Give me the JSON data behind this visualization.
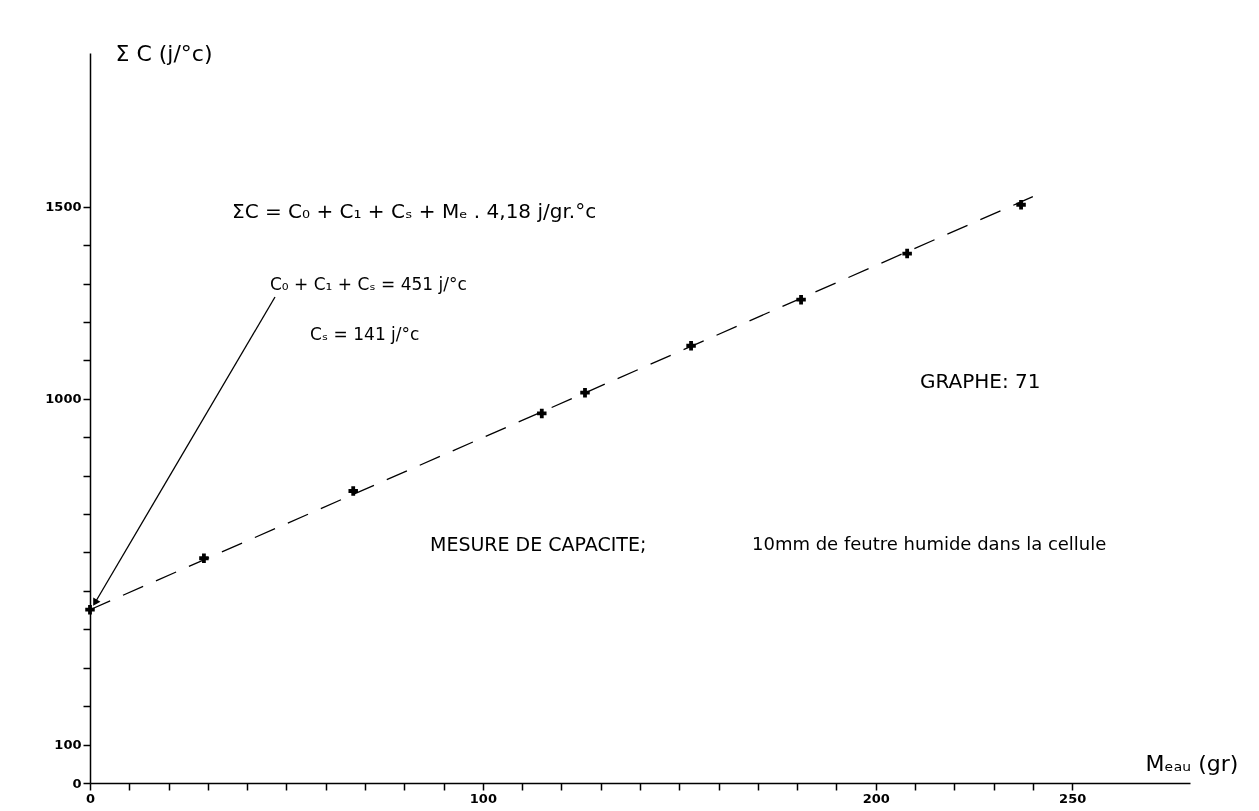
{
  "chart_data": {
    "type": "scatter",
    "xlabel": "Mₑₐᵤ (gr)",
    "ylabel": "Σ C (j/°c)",
    "x": [
      0,
      29,
      67,
      115,
      126,
      153,
      181,
      208,
      237
    ],
    "series": [
      {
        "color": "#000000",
        "values": [
          451,
          585,
          760,
          962,
          1016,
          1138,
          1258,
          1378,
          1505
        ]
      },
      {
        "type": "line",
        "marker": "none",
        "color": "#000000",
        "x": [
          0,
          240
        ],
        "values": [
          451,
          1526
        ]
      }
    ],
    "marker": "cross",
    "line_style": "dashed",
    "grid": false,
    "xlim": [
      0,
      280
    ],
    "ylim": [
      0,
      1900
    ],
    "xticks": [
      0,
      {
        "value": 10,
        "label": null
      },
      {
        "value": 20,
        "label": null
      },
      {
        "value": 30,
        "label": null
      },
      {
        "value": 40,
        "label": null
      },
      {
        "value": 50,
        "label": null
      },
      {
        "value": 60,
        "label": null
      },
      {
        "value": 70,
        "label": null
      },
      {
        "value": 80,
        "label": null
      },
      {
        "value": 90,
        "label": null
      },
      100,
      {
        "value": 110,
        "label": null
      },
      {
        "value": 120,
        "label": null
      },
      {
        "value": 130,
        "label": null
      },
      {
        "value": 140,
        "label": null
      },
      {
        "value": 150,
        "label": null
      },
      {
        "value": 160,
        "label": null
      },
      {
        "value": 170,
        "label": null
      },
      {
        "value": 180,
        "label": null
      },
      {
        "value": 190,
        "label": null
      },
      200,
      {
        "value": 210,
        "label": null
      },
      {
        "value": 220,
        "label": null
      },
      {
        "value": 230,
        "label": null
      },
      {
        "value": 240,
        "label": null
      },
      250
    ],
    "yticks": [
      0,
      100,
      {
        "value": 200,
        "label": null
      },
      {
        "value": 300,
        "label": null
      },
      {
        "value": 400,
        "label": null
      },
      {
        "value": 500,
        "label": null
      },
      {
        "value": 600,
        "label": null
      },
      {
        "value": 700,
        "label": null
      },
      {
        "value": 800,
        "label": null
      },
      {
        "value": 900,
        "label": null
      },
      1000,
      {
        "value": 1100,
        "label": null
      },
      {
        "value": 1200,
        "label": null
      },
      {
        "value": 1300,
        "label": null
      },
      {
        "value": 1400,
        "label": null
      },
      1500
    ],
    "annotations": [
      "ΣC = C₀ + C₁ + Cₛ + Mₑ . 4,18 j/gr.°c",
      {
        "text": "C₀ + C₁ + Cₛ = 451 j/°c",
        "x": 0,
        "y": 451
      },
      "Cₛ = 141 j/°c",
      "GRAPHE: 71",
      "MESURE DE CAPACITE;",
      "10mm de feutre humide dans la cellule"
    ]
  }
}
